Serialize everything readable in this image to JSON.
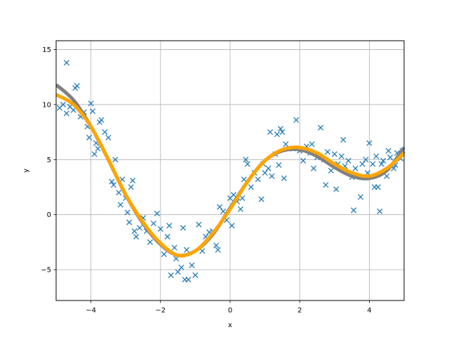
{
  "chart_data": {
    "type": "scatter",
    "xlabel": "x",
    "ylabel": "y",
    "xlim": [
      -5,
      5
    ],
    "ylim": [
      -7.8,
      15.8
    ],
    "xticks": [
      -4,
      -2,
      0,
      2,
      4
    ],
    "yticks": [
      -5,
      0,
      5,
      10,
      15
    ],
    "grid": true,
    "colors": {
      "scatter": "#1f77b4",
      "fit_gray": "#808080",
      "fit_orange": "#ffa500",
      "grid": "#b0b0b0"
    },
    "series": [
      {
        "marker": "x",
        "points": [
          [
            -4.7,
            13.8
          ],
          [
            -4.9,
            9.7
          ],
          [
            -4.8,
            10.0
          ],
          [
            -4.7,
            9.2
          ],
          [
            -4.6,
            9.8
          ],
          [
            -4.5,
            9.5
          ],
          [
            -4.45,
            11.5
          ],
          [
            -4.4,
            11.7
          ],
          [
            -4.3,
            8.9
          ],
          [
            -4.2,
            9.3
          ],
          [
            -4.1,
            8.0
          ],
          [
            -4.05,
            7.0
          ],
          [
            -4.0,
            10.1
          ],
          [
            -3.95,
            9.4
          ],
          [
            -3.9,
            5.5
          ],
          [
            -3.85,
            6.5
          ],
          [
            -3.8,
            6.0
          ],
          [
            -3.75,
            8.4
          ],
          [
            -3.7,
            8.6
          ],
          [
            -3.6,
            7.5
          ],
          [
            -3.5,
            7.0
          ],
          [
            -3.4,
            3.0
          ],
          [
            -3.35,
            2.7
          ],
          [
            -3.3,
            5.0
          ],
          [
            -3.2,
            2.0
          ],
          [
            -3.15,
            0.9
          ],
          [
            -3.1,
            3.2
          ],
          [
            -3.0,
            1.5
          ],
          [
            -2.95,
            0.2
          ],
          [
            -2.9,
            -0.7
          ],
          [
            -2.85,
            2.5
          ],
          [
            -2.8,
            3.1
          ],
          [
            -2.75,
            -1.5
          ],
          [
            -2.7,
            -2.0
          ],
          [
            -2.6,
            -1.2
          ],
          [
            -2.5,
            -0.3
          ],
          [
            -2.4,
            -1.5
          ],
          [
            -2.3,
            -2.5
          ],
          [
            -2.2,
            -0.8
          ],
          [
            -2.1,
            0.1
          ],
          [
            -2.0,
            -1.3
          ],
          [
            -1.9,
            -3.6
          ],
          [
            -1.8,
            -2.0
          ],
          [
            -1.75,
            -1.0
          ],
          [
            -1.7,
            -5.5
          ],
          [
            -1.6,
            -3.0
          ],
          [
            -1.55,
            -4.0
          ],
          [
            -1.5,
            -5.2
          ],
          [
            -1.4,
            -4.8
          ],
          [
            -1.35,
            -1.2
          ],
          [
            -1.3,
            -5.9
          ],
          [
            -1.25,
            -3.2
          ],
          [
            -1.2,
            -5.9
          ],
          [
            -1.1,
            -4.6
          ],
          [
            -1.0,
            -5.5
          ],
          [
            -0.9,
            -0.9
          ],
          [
            -0.8,
            -3.3
          ],
          [
            -0.7,
            -2.0
          ],
          [
            -0.6,
            -1.6
          ],
          [
            -0.5,
            -1.5
          ],
          [
            -0.4,
            -2.8
          ],
          [
            -0.35,
            -3.2
          ],
          [
            -0.3,
            0.7
          ],
          [
            -0.2,
            0.3
          ],
          [
            -0.1,
            -0.5
          ],
          [
            0.0,
            1.5
          ],
          [
            0.05,
            -1.0
          ],
          [
            0.1,
            1.8
          ],
          [
            0.2,
            1.2
          ],
          [
            0.3,
            0.5
          ],
          [
            0.35,
            1.5
          ],
          [
            0.4,
            3.2
          ],
          [
            0.45,
            5.0
          ],
          [
            0.5,
            4.6
          ],
          [
            0.6,
            2.5
          ],
          [
            0.7,
            3.8
          ],
          [
            0.8,
            3.2
          ],
          [
            0.9,
            1.4
          ],
          [
            0.95,
            4.6
          ],
          [
            1.0,
            3.8
          ],
          [
            1.1,
            4.2
          ],
          [
            1.15,
            7.5
          ],
          [
            1.2,
            3.5
          ],
          [
            1.3,
            5.5
          ],
          [
            1.35,
            7.3
          ],
          [
            1.4,
            4.5
          ],
          [
            1.45,
            7.8
          ],
          [
            1.5,
            7.5
          ],
          [
            1.55,
            3.3
          ],
          [
            1.6,
            6.4
          ],
          [
            1.7,
            6.0
          ],
          [
            1.8,
            6.0
          ],
          [
            1.9,
            8.6
          ],
          [
            2.0,
            5.8
          ],
          [
            2.1,
            4.9
          ],
          [
            2.2,
            6.2
          ],
          [
            2.3,
            5.6
          ],
          [
            2.35,
            6.4
          ],
          [
            2.4,
            4.2
          ],
          [
            2.5,
            5.2
          ],
          [
            2.6,
            7.9
          ],
          [
            2.7,
            5.0
          ],
          [
            2.75,
            2.7
          ],
          [
            2.8,
            5.7
          ],
          [
            2.9,
            4.0
          ],
          [
            3.0,
            5.5
          ],
          [
            3.05,
            2.3
          ],
          [
            3.1,
            4.6
          ],
          [
            3.2,
            5.3
          ],
          [
            3.25,
            6.8
          ],
          [
            3.3,
            4.4
          ],
          [
            3.4,
            4.9
          ],
          [
            3.5,
            3.4
          ],
          [
            3.55,
            0.4
          ],
          [
            3.6,
            4.2
          ],
          [
            3.7,
            3.5
          ],
          [
            3.75,
            1.6
          ],
          [
            3.8,
            4.6
          ],
          [
            3.9,
            5.0
          ],
          [
            3.95,
            3.8
          ],
          [
            4.0,
            6.5
          ],
          [
            4.1,
            4.6
          ],
          [
            4.15,
            2.5
          ],
          [
            4.2,
            5.3
          ],
          [
            4.25,
            2.5
          ],
          [
            4.3,
            0.3
          ],
          [
            4.35,
            4.6
          ],
          [
            4.4,
            4.9
          ],
          [
            4.5,
            3.5
          ],
          [
            4.55,
            5.8
          ],
          [
            4.6,
            5.2
          ],
          [
            4.7,
            4.2
          ],
          [
            4.75,
            4.5
          ],
          [
            4.8,
            5.6
          ],
          [
            4.9,
            5.1
          ],
          [
            4.95,
            5.8
          ]
        ]
      },
      {
        "type": "line",
        "color": "#808080",
        "x": [
          -5.0,
          -4.5,
          -4.0,
          -3.5,
          -3.0,
          -2.5,
          -2.0,
          -1.5,
          -1.0,
          -0.5,
          0.0,
          0.5,
          1.0,
          1.5,
          2.0,
          2.5,
          3.0,
          3.5,
          4.0,
          4.5,
          5.0
        ],
        "y": [
          11.8,
          10.4,
          8.0,
          5.0,
          1.8,
          -0.8,
          -2.7,
          -3.7,
          -3.3,
          -1.8,
          0.6,
          3.0,
          4.9,
          5.8,
          5.9,
          5.3,
          4.3,
          3.5,
          3.3,
          4.0,
          6.1
        ]
      },
      {
        "type": "line",
        "color": "#ffa500",
        "x": [
          -5.0,
          -4.5,
          -4.0,
          -3.5,
          -3.0,
          -2.5,
          -2.0,
          -1.5,
          -1.0,
          -0.5,
          0.0,
          0.5,
          1.0,
          1.5,
          2.0,
          2.5,
          3.0,
          3.5,
          4.0,
          4.5,
          5.0
        ],
        "y": [
          10.9,
          10.0,
          8.0,
          5.0,
          1.8,
          -0.7,
          -2.6,
          -3.7,
          -3.3,
          -1.7,
          0.5,
          3.0,
          4.9,
          5.9,
          6.1,
          5.6,
          4.6,
          3.8,
          3.5,
          4.2,
          5.6
        ]
      }
    ]
  }
}
